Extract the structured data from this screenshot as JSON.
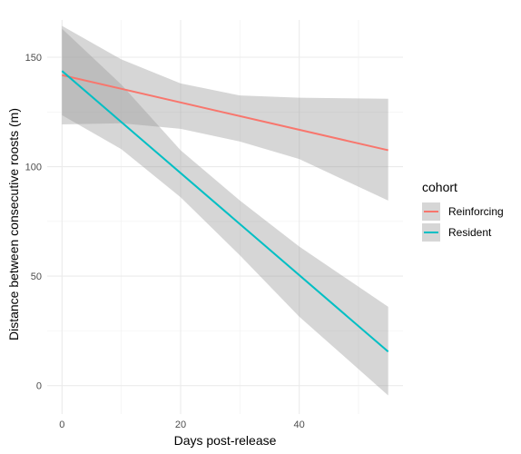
{
  "chart_data": {
    "type": "line",
    "xlabel": "Days post-release",
    "ylabel": "Distance between consecutive roosts (m)",
    "xlim": [
      -2.5,
      57.5
    ],
    "ylim": [
      -13,
      167
    ],
    "x_ticks": [
      0,
      20,
      40
    ],
    "y_ticks": [
      0,
      50,
      100,
      150
    ],
    "grid": true,
    "legend": {
      "title": "cohort",
      "position": "right"
    },
    "series": [
      {
        "name": "Reinforcing",
        "color": "#F8766D",
        "x": [
          0,
          55
        ],
        "y": [
          141.8,
          107.5
        ],
        "ci_x": [
          0,
          10,
          20,
          30,
          40,
          55
        ],
        "ci_lower": [
          119.3,
          119.8,
          117.3,
          111.5,
          103.5,
          84.5
        ],
        "ci_upper": [
          164.3,
          149.0,
          138.0,
          132.5,
          131.5,
          131.0
        ]
      },
      {
        "name": "Resident",
        "color": "#00BFC4",
        "x": [
          0,
          55
        ],
        "y": [
          143.7,
          15.5
        ],
        "ci_x": [
          0,
          10,
          20,
          30,
          40,
          55
        ],
        "ci_lower": [
          123.5,
          108.0,
          86.0,
          59.5,
          31.5,
          -4.5
        ],
        "ci_upper": [
          163.0,
          137.5,
          107.5,
          84.5,
          63.5,
          36.0
        ]
      }
    ]
  }
}
